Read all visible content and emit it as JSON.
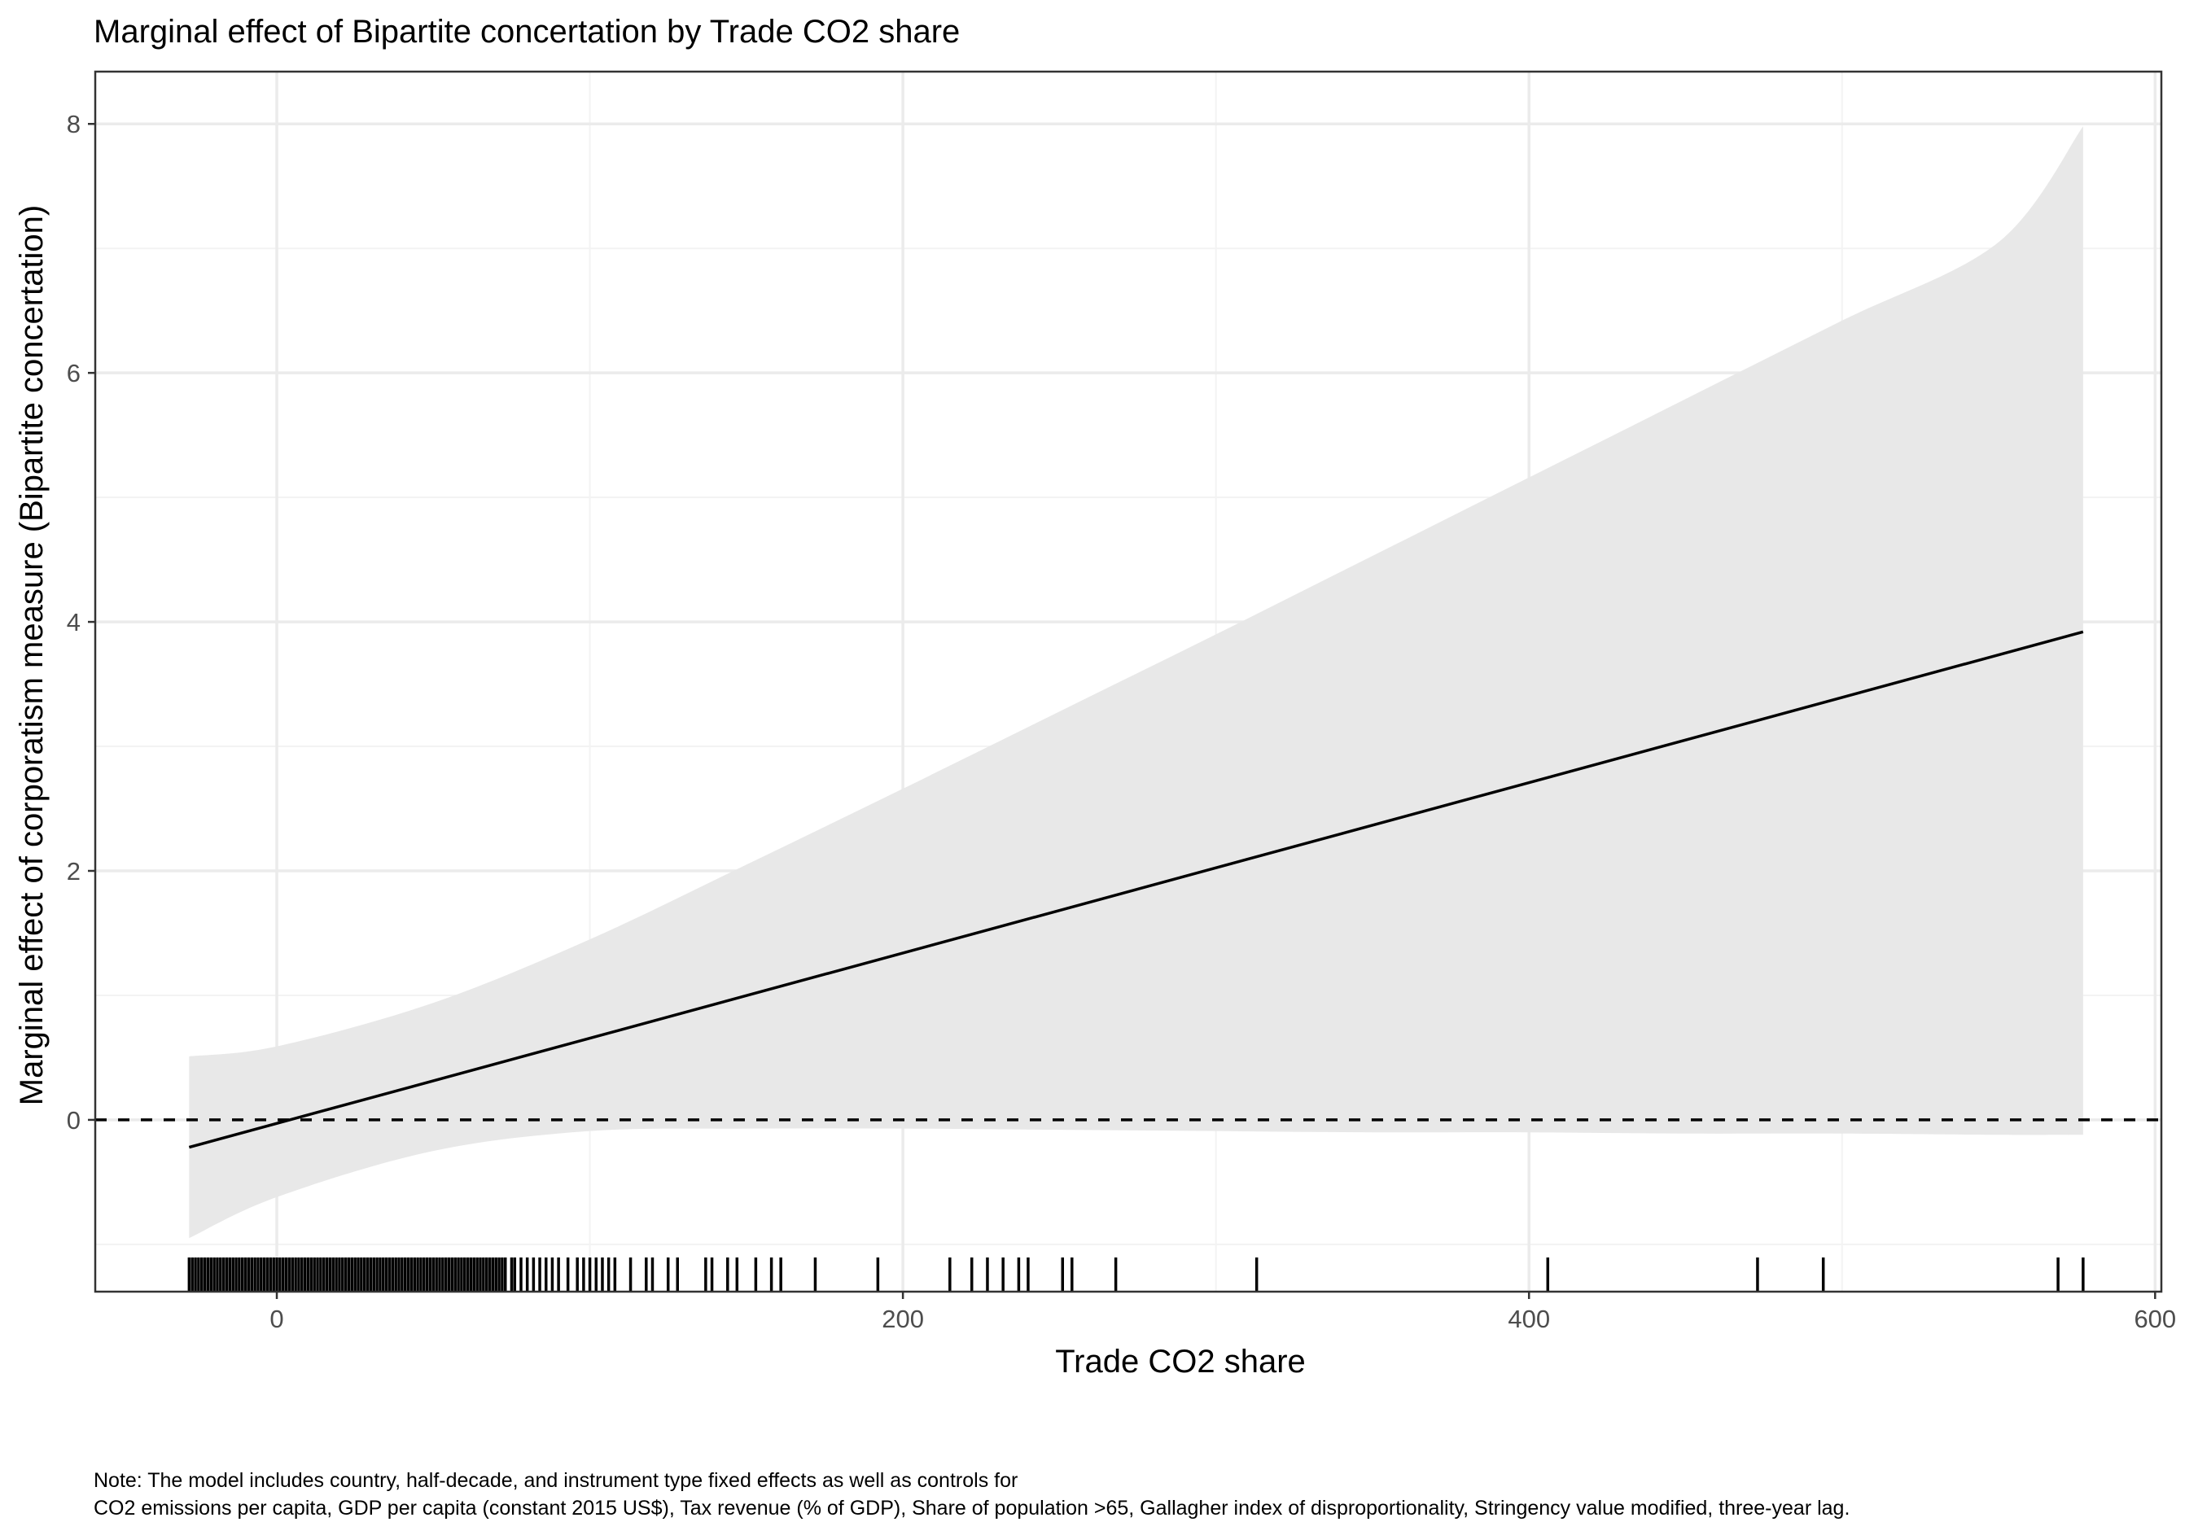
{
  "chart_data": {
    "type": "line",
    "title": "Marginal effect of Bipartite concertation by Trade CO2 share",
    "xlabel": "Trade CO2 share",
    "ylabel": "Marginal effect of corporatism measure (Bipartite concertation)",
    "xlim": [
      -58,
      602
    ],
    "ylim": [
      -1.38,
      8.42
    ],
    "x_ticks": [
      0,
      200,
      400,
      600
    ],
    "x_tick_labels": [
      "0",
      "200",
      "400",
      "600"
    ],
    "y_ticks": [
      0,
      2,
      4,
      6,
      8
    ],
    "y_tick_labels": [
      "0",
      "2",
      "4",
      "6",
      "8"
    ],
    "grid": true,
    "reference_line": {
      "y": 0,
      "style": "dashed"
    },
    "series": [
      {
        "x": [
          -28,
          577
        ],
        "y": [
          -0.22,
          3.92
        ]
      }
    ],
    "confidence_band": {
      "x": [
        -28,
        0,
        50,
        100,
        150,
        200,
        250,
        300,
        350,
        400,
        450,
        500,
        550,
        577
      ],
      "lower": [
        -0.95,
        -0.62,
        -0.25,
        -0.09,
        -0.07,
        -0.07,
        -0.08,
        -0.09,
        -0.1,
        -0.1,
        -0.11,
        -0.11,
        -0.12,
        -0.12
      ],
      "upper": [
        0.51,
        0.59,
        0.94,
        1.45,
        2.05,
        2.66,
        3.28,
        3.9,
        4.53,
        5.16,
        5.79,
        6.42,
        7.05,
        7.98
      ]
    },
    "rug_x": [
      -28,
      -27,
      -26,
      -25,
      -24,
      -23,
      -22,
      -21,
      -20,
      -19,
      -18,
      -17,
      -16,
      -15,
      -14,
      -13,
      -12,
      -11,
      -10,
      -9,
      -8,
      -7,
      -6,
      -5,
      -4,
      -3,
      -2,
      -1,
      0,
      1,
      2,
      3,
      4,
      5,
      6,
      7,
      8,
      9,
      10,
      11,
      12,
      13,
      14,
      15,
      16,
      17,
      18,
      19,
      20,
      21,
      22,
      23,
      24,
      25,
      26,
      27,
      28,
      29,
      30,
      31,
      32,
      33,
      34,
      35,
      36,
      37,
      38,
      39,
      40,
      41,
      42,
      43,
      44,
      45,
      46,
      47,
      48,
      49,
      50,
      51,
      52,
      53,
      54,
      55,
      56,
      57,
      58,
      59,
      60,
      61,
      62,
      63,
      64,
      65,
      66,
      67,
      68,
      69,
      70,
      71,
      72,
      73,
      75,
      76,
      78,
      80,
      82,
      84,
      86,
      88,
      90,
      93,
      96,
      98,
      100,
      102,
      104,
      106,
      108,
      113,
      118,
      120,
      125,
      128,
      137,
      139,
      144,
      147,
      153,
      158,
      161,
      172,
      192,
      215,
      222,
      227,
      232,
      237,
      240,
      251,
      254,
      268,
      313,
      406,
      473,
      494,
      569,
      577
    ]
  },
  "note": {
    "line1": "Note: The model includes country, half-decade, and instrument type fixed effects as well as controls for",
    "line2": "CO2 emissions per capita, GDP per capita (constant 2015 US$), Tax revenue (% of GDP), Share of population >65, Gallagher index of disproportionality, Stringency value modified, three-year lag."
  },
  "colors": {
    "band": "#e8e8e8",
    "grid_major": "#ebebeb",
    "grid_minor": "#f3f3f3",
    "line": "#000000",
    "panel_border": "#333333"
  }
}
